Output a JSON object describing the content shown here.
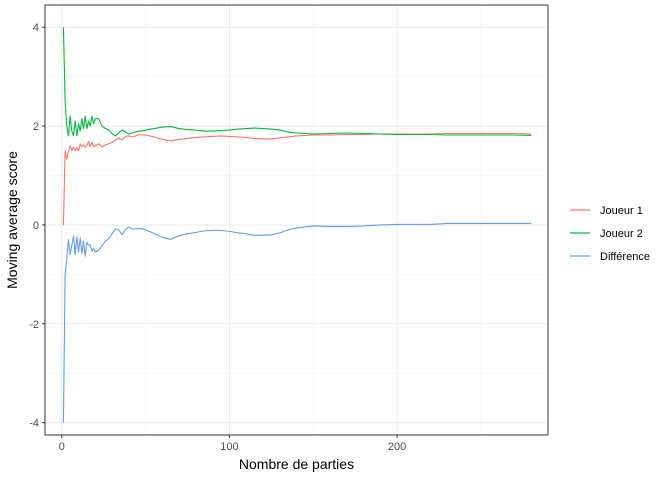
{
  "chart_data": {
    "type": "line",
    "xlabel": "Nombre de parties",
    "ylabel": "Moving average score",
    "xlim": [
      -10,
      290
    ],
    "ylim": [
      -4.25,
      4.45
    ],
    "x_ticks": [
      0,
      100,
      200
    ],
    "x_tick_labels": [
      "0",
      "100",
      "200"
    ],
    "y_ticks": [
      -4,
      -2,
      0,
      2,
      4
    ],
    "y_tick_labels": [
      "-4",
      "-2",
      "0",
      "2",
      "4"
    ],
    "grid": true,
    "legend_position": "right",
    "series": [
      {
        "name": "Joueur 1",
        "color": "#F8766D",
        "points": [
          [
            1,
            0
          ],
          [
            2,
            1.5
          ],
          [
            3,
            1.33
          ],
          [
            4,
            1.5
          ],
          [
            5,
            1.6
          ],
          [
            6,
            1.5
          ],
          [
            7,
            1.57
          ],
          [
            8,
            1.5
          ],
          [
            9,
            1.56
          ],
          [
            10,
            1.5
          ],
          [
            11,
            1.64
          ],
          [
            12,
            1.58
          ],
          [
            13,
            1.62
          ],
          [
            14,
            1.57
          ],
          [
            15,
            1.6
          ],
          [
            16,
            1.69
          ],
          [
            17,
            1.59
          ],
          [
            18,
            1.67
          ],
          [
            19,
            1.58
          ],
          [
            20,
            1.6
          ],
          [
            22,
            1.64
          ],
          [
            24,
            1.58
          ],
          [
            26,
            1.62
          ],
          [
            28,
            1.64
          ],
          [
            30,
            1.67
          ],
          [
            32,
            1.72
          ],
          [
            34,
            1.76
          ],
          [
            36,
            1.72
          ],
          [
            38,
            1.79
          ],
          [
            40,
            1.8
          ],
          [
            42,
            1.78
          ],
          [
            44,
            1.8
          ],
          [
            46,
            1.83
          ],
          [
            48,
            1.82
          ],
          [
            50,
            1.82
          ],
          [
            55,
            1.78
          ],
          [
            60,
            1.73
          ],
          [
            65,
            1.7
          ],
          [
            70,
            1.73
          ],
          [
            75,
            1.75
          ],
          [
            80,
            1.77
          ],
          [
            85,
            1.78
          ],
          [
            90,
            1.79
          ],
          [
            95,
            1.8
          ],
          [
            100,
            1.79
          ],
          [
            105,
            1.78
          ],
          [
            110,
            1.77
          ],
          [
            115,
            1.75
          ],
          [
            120,
            1.74
          ],
          [
            125,
            1.74
          ],
          [
            130,
            1.76
          ],
          [
            135,
            1.78
          ],
          [
            140,
            1.8
          ],
          [
            145,
            1.81
          ],
          [
            150,
            1.82
          ],
          [
            160,
            1.82
          ],
          [
            170,
            1.83
          ],
          [
            180,
            1.83
          ],
          [
            190,
            1.84
          ],
          [
            200,
            1.84
          ],
          [
            210,
            1.84
          ],
          [
            220,
            1.84
          ],
          [
            230,
            1.85
          ],
          [
            240,
            1.85
          ],
          [
            250,
            1.85
          ],
          [
            260,
            1.85
          ],
          [
            270,
            1.85
          ],
          [
            280,
            1.84
          ]
        ]
      },
      {
        "name": "Joueur 2",
        "color": "#00BA38",
        "points": [
          [
            1,
            4
          ],
          [
            2,
            2.5
          ],
          [
            3,
            2
          ],
          [
            4,
            1.8
          ],
          [
            5,
            2.2
          ],
          [
            6,
            1.9
          ],
          [
            7,
            1.8
          ],
          [
            8,
            2.1
          ],
          [
            9,
            1.8
          ],
          [
            10,
            2.05
          ],
          [
            11,
            1.9
          ],
          [
            12,
            2.15
          ],
          [
            13,
            1.95
          ],
          [
            14,
            2.2
          ],
          [
            15,
            1.95
          ],
          [
            16,
            2.1
          ],
          [
            17,
            2.0
          ],
          [
            18,
            2.2
          ],
          [
            19,
            2.05
          ],
          [
            20,
            2.15
          ],
          [
            22,
            2.15
          ],
          [
            24,
            2.0
          ],
          [
            26,
            1.95
          ],
          [
            28,
            1.92
          ],
          [
            30,
            1.85
          ],
          [
            32,
            1.8
          ],
          [
            34,
            1.86
          ],
          [
            36,
            1.92
          ],
          [
            38,
            1.88
          ],
          [
            40,
            1.84
          ],
          [
            42,
            1.86
          ],
          [
            44,
            1.88
          ],
          [
            46,
            1.9
          ],
          [
            48,
            1.9
          ],
          [
            50,
            1.92
          ],
          [
            55,
            1.95
          ],
          [
            60,
            1.98
          ],
          [
            65,
            1.99
          ],
          [
            70,
            1.95
          ],
          [
            75,
            1.93
          ],
          [
            80,
            1.92
          ],
          [
            85,
            1.9
          ],
          [
            90,
            1.9
          ],
          [
            95,
            1.91
          ],
          [
            100,
            1.92
          ],
          [
            105,
            1.94
          ],
          [
            110,
            1.95
          ],
          [
            115,
            1.96
          ],
          [
            120,
            1.95
          ],
          [
            125,
            1.94
          ],
          [
            130,
            1.92
          ],
          [
            135,
            1.88
          ],
          [
            140,
            1.86
          ],
          [
            145,
            1.85
          ],
          [
            150,
            1.84
          ],
          [
            160,
            1.85
          ],
          [
            170,
            1.86
          ],
          [
            180,
            1.85
          ],
          [
            190,
            1.84
          ],
          [
            200,
            1.83
          ],
          [
            210,
            1.83
          ],
          [
            220,
            1.83
          ],
          [
            230,
            1.82
          ],
          [
            240,
            1.82
          ],
          [
            250,
            1.82
          ],
          [
            260,
            1.82
          ],
          [
            270,
            1.82
          ],
          [
            280,
            1.81
          ]
        ]
      },
      {
        "name": "Différence",
        "color": "#619CFF",
        "points": [
          [
            1,
            -4
          ],
          [
            2,
            -1
          ],
          [
            3,
            -0.67
          ],
          [
            4,
            -0.3
          ],
          [
            5,
            -0.6
          ],
          [
            6,
            -0.4
          ],
          [
            7,
            -0.23
          ],
          [
            8,
            -0.6
          ],
          [
            9,
            -0.24
          ],
          [
            10,
            -0.55
          ],
          [
            11,
            -0.26
          ],
          [
            12,
            -0.57
          ],
          [
            13,
            -0.33
          ],
          [
            14,
            -0.63
          ],
          [
            15,
            -0.35
          ],
          [
            16,
            -0.41
          ],
          [
            17,
            -0.41
          ],
          [
            18,
            -0.53
          ],
          [
            19,
            -0.47
          ],
          [
            20,
            -0.55
          ],
          [
            22,
            -0.51
          ],
          [
            24,
            -0.42
          ],
          [
            26,
            -0.33
          ],
          [
            28,
            -0.28
          ],
          [
            30,
            -0.18
          ],
          [
            32,
            -0.08
          ],
          [
            34,
            -0.1
          ],
          [
            36,
            -0.2
          ],
          [
            38,
            -0.09
          ],
          [
            40,
            -0.04
          ],
          [
            42,
            -0.08
          ],
          [
            44,
            -0.08
          ],
          [
            46,
            -0.07
          ],
          [
            48,
            -0.08
          ],
          [
            50,
            -0.1
          ],
          [
            55,
            -0.17
          ],
          [
            60,
            -0.25
          ],
          [
            65,
            -0.29
          ],
          [
            70,
            -0.22
          ],
          [
            75,
            -0.18
          ],
          [
            80,
            -0.15
          ],
          [
            85,
            -0.12
          ],
          [
            90,
            -0.11
          ],
          [
            95,
            -0.11
          ],
          [
            100,
            -0.13
          ],
          [
            105,
            -0.16
          ],
          [
            110,
            -0.18
          ],
          [
            115,
            -0.21
          ],
          [
            120,
            -0.21
          ],
          [
            125,
            -0.2
          ],
          [
            130,
            -0.16
          ],
          [
            135,
            -0.1
          ],
          [
            140,
            -0.06
          ],
          [
            145,
            -0.04
          ],
          [
            150,
            -0.02
          ],
          [
            160,
            -0.03
          ],
          [
            170,
            -0.03
          ],
          [
            180,
            -0.02
          ],
          [
            190,
            0
          ],
          [
            200,
            0.01
          ],
          [
            210,
            0.01
          ],
          [
            220,
            0.01
          ],
          [
            230,
            0.03
          ],
          [
            240,
            0.03
          ],
          [
            250,
            0.03
          ],
          [
            260,
            0.03
          ],
          [
            270,
            0.03
          ],
          [
            280,
            0.03
          ]
        ]
      }
    ]
  }
}
